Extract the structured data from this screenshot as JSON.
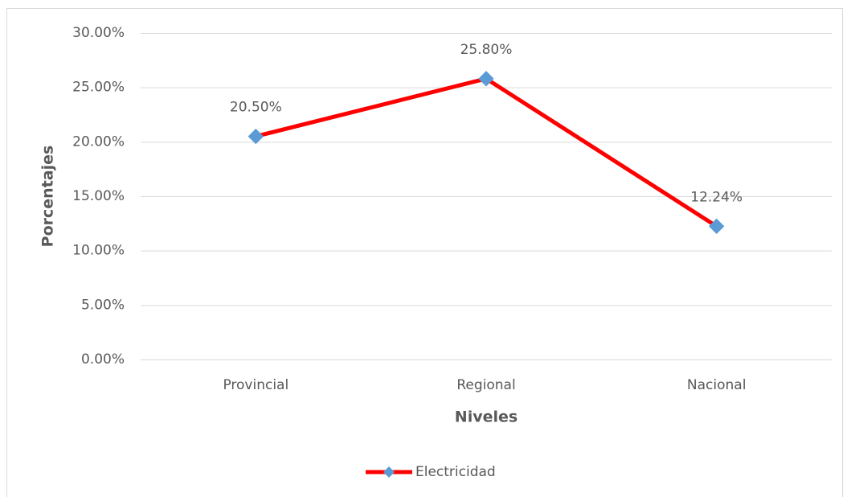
{
  "chart_data": {
    "type": "line",
    "categories": [
      "Provincial",
      "Regional",
      "Nacional"
    ],
    "series": [
      {
        "name": "Electricidad",
        "color": "#ff0000",
        "marker_color": "#5b9bd5",
        "values": [
          20.5,
          25.8,
          12.24
        ],
        "value_labels": [
          "20.50%",
          "25.80%",
          "12.24%"
        ]
      }
    ],
    "ylim": [
      0,
      30
    ],
    "yticks": [
      {
        "value": 0,
        "label": "0.00%"
      },
      {
        "value": 5,
        "label": "5.00%"
      },
      {
        "value": 10,
        "label": "10.00%"
      },
      {
        "value": 15,
        "label": "15.00%"
      },
      {
        "value": 20,
        "label": "20.00%"
      },
      {
        "value": 25,
        "label": "25.00%"
      },
      {
        "value": 30,
        "label": "30.00%"
      }
    ],
    "ylabel": "Porcentajes",
    "xlabel": "Niveles",
    "grid": true,
    "legend": "bottom"
  }
}
